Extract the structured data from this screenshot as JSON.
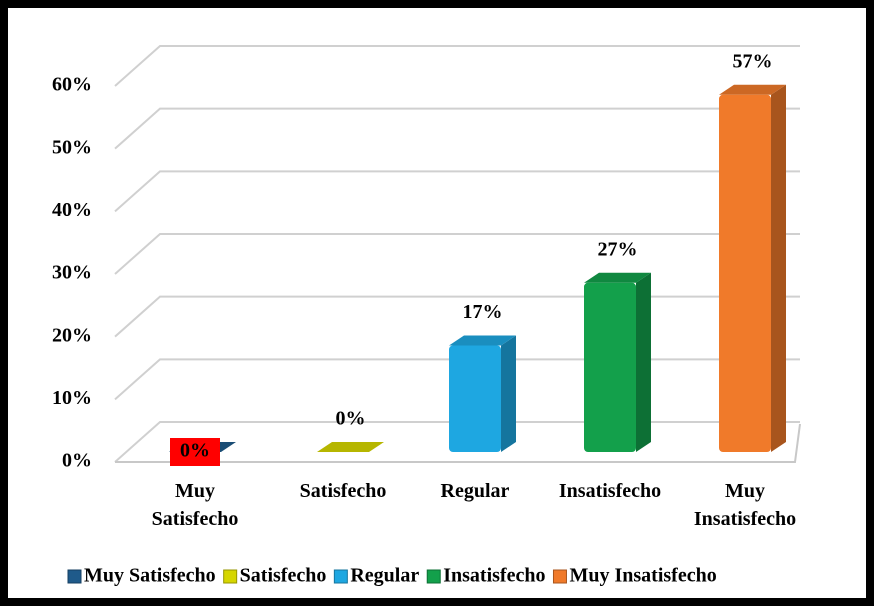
{
  "chart_data": {
    "type": "bar3d",
    "categories": [
      "Muy Satisfecho",
      "Satisfecho",
      "Regular",
      "Insatisfecho",
      "Muy Insatisfecho"
    ],
    "values": [
      0,
      0,
      17,
      27,
      57
    ],
    "value_labels": [
      "0%",
      "0%",
      "17%",
      "27%",
      "57%"
    ],
    "colors": [
      "#1f5a8a",
      "#d6d600",
      "#1ea7e1",
      "#13a04b",
      "#f07a2a"
    ],
    "ylim": [
      0,
      60
    ],
    "yticks": [
      {
        "value": 0,
        "label": "0%"
      },
      {
        "value": 10,
        "label": "10%"
      },
      {
        "value": 20,
        "label": "20%"
      },
      {
        "value": 30,
        "label": "30%"
      },
      {
        "value": 40,
        "label": "40%"
      },
      {
        "value": 50,
        "label": "50%"
      },
      {
        "value": 60,
        "label": "60%"
      }
    ],
    "grid": true,
    "legend": "bottom"
  }
}
